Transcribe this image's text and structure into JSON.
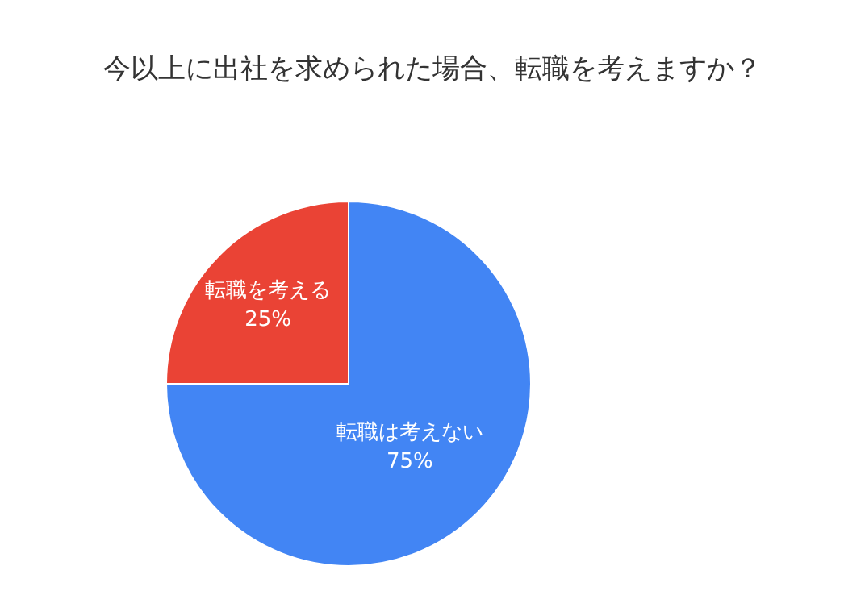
{
  "chart_data": {
    "type": "pie",
    "title": "今以上に出社を求められた場合、転職を考えますか？",
    "categories": [
      "転職は考えない",
      "転職を考える"
    ],
    "values": [
      75,
      25
    ],
    "value_labels": [
      "75%",
      "25%"
    ],
    "colors": [
      "#4285f4",
      "#ea4335"
    ],
    "legend": false
  }
}
